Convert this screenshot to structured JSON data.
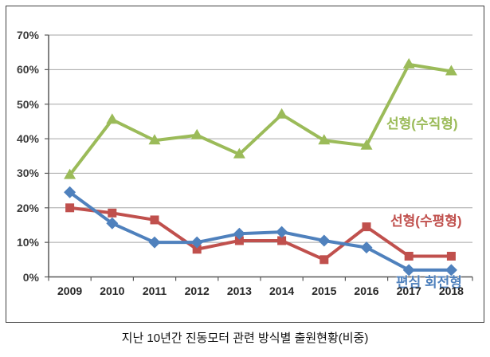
{
  "chart_data": {
    "type": "line",
    "title": "지난 10년간 진동모터 관련 방식별 출원현황(비중)",
    "categories": [
      "2009",
      "2010",
      "2011",
      "2012",
      "2013",
      "2014",
      "2015",
      "2016",
      "2017",
      "2018"
    ],
    "series": [
      {
        "key": "linear-vertical",
        "name": "선형(수직형)",
        "color": "#9BBB59",
        "marker": "triangle",
        "values": [
          29.5,
          45.5,
          39.5,
          41,
          35.5,
          47,
          39.5,
          38,
          61.5,
          59.5
        ],
        "label_pos": {
          "x": 477,
          "y": 133
        }
      },
      {
        "key": "linear-horizontal",
        "name": "선형(수평형)",
        "color": "#C0504D",
        "marker": "square",
        "values": [
          20,
          18.5,
          16.5,
          8,
          10.5,
          10.5,
          5,
          14.5,
          6,
          6
        ],
        "label_pos": {
          "x": 482,
          "y": 255
        }
      },
      {
        "key": "eccentric-rotary",
        "name": "편심 회전형",
        "color": "#4F81BD",
        "marker": "diamond",
        "values": [
          24.5,
          15.5,
          10,
          10,
          12.5,
          13,
          10.5,
          8.5,
          2,
          2
        ],
        "label_pos": {
          "x": 489,
          "y": 332
        }
      }
    ],
    "y_tick_labels": [
      "0%",
      "10%",
      "20%",
      "30%",
      "40%",
      "50%",
      "60%",
      "70%"
    ],
    "ylim": [
      0,
      70
    ],
    "grid": true,
    "legend": "inline-series-labels",
    "colors": {
      "grid": "#A6A6A6",
      "axis": "#595959",
      "border": "#3F3F3F",
      "tick_text": "#3C3C3C"
    }
  }
}
